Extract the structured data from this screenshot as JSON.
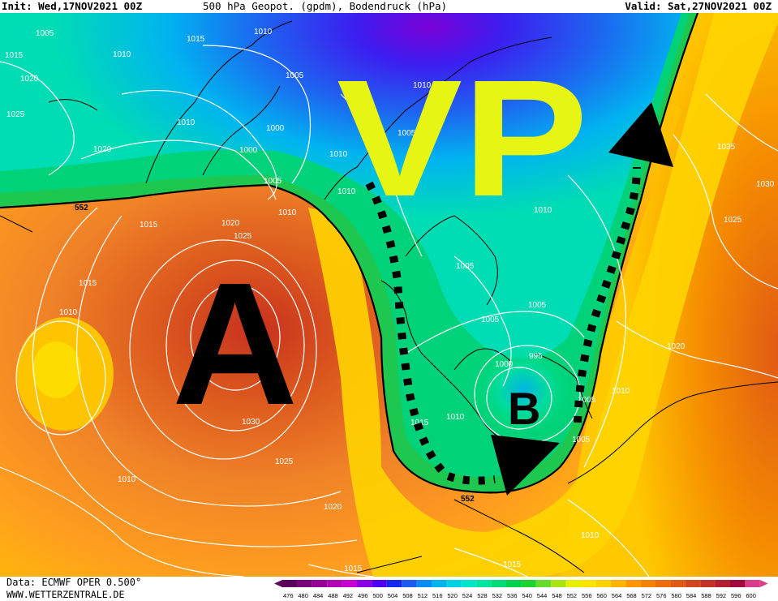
{
  "header": {
    "init": "Init: Wed,17NOV2021 00Z",
    "title": "500 hPa Geopot. (gpdm), Bodendruck (hPa)",
    "valid": "Valid: Sat,27NOV2021 00Z"
  },
  "footer": {
    "data_source": "Data: ECMWF OPER 0.500°",
    "website": "WWW.WETTERZENTRALE.DE"
  },
  "colors": {
    "scale": [
      "#5a005a",
      "#780078",
      "#960096",
      "#b400b4",
      "#c800d2",
      "#8c00e6",
      "#5000f0",
      "#1428f0",
      "#1e5af0",
      "#0a8cf0",
      "#00b4f0",
      "#00d2e6",
      "#00e6c8",
      "#00e6a0",
      "#00dc78",
      "#00d250",
      "#1ed232",
      "#64dc28",
      "#aae614",
      "#e6f000",
      "#fae600",
      "#ffd200",
      "#ffb400",
      "#ff9600",
      "#f58200",
      "#eb6e0a",
      "#e15a14",
      "#d2461e",
      "#c33228",
      "#b41e32",
      "#a00a3c",
      "#dc3c8c"
    ]
  },
  "legend_scale": {
    "values": [
      "476",
      "480",
      "484",
      "488",
      "492",
      "496",
      "500",
      "504",
      "508",
      "512",
      "516",
      "520",
      "524",
      "528",
      "532",
      "536",
      "540",
      "544",
      "548",
      "552",
      "556",
      "560",
      "564",
      "568",
      "572",
      "576",
      "580",
      "584",
      "588",
      "592",
      "596",
      "600"
    ]
  },
  "annotations": {
    "high": "A",
    "low": "B",
    "vortex": "VP"
  },
  "isobar_labels": [
    "1005",
    "1015",
    "1010",
    "1010",
    "1015",
    "1020",
    "1025",
    "1010",
    "1005",
    "1000",
    "1010",
    "1020",
    "1000",
    "1010",
    "1005",
    "1010",
    "1020",
    "1015",
    "1025",
    "1015",
    "1010",
    "1030",
    "1025",
    "1010",
    "1020",
    "1015",
    "1010",
    "1005",
    "1005",
    "1005",
    "1005",
    "1000",
    "995",
    "1015",
    "1010",
    "1005",
    "1010",
    "1020",
    "1025",
    "1035",
    "1030",
    "1010",
    "1015",
    "1010",
    "1005"
  ],
  "height_labels": [
    "552",
    "552"
  ]
}
